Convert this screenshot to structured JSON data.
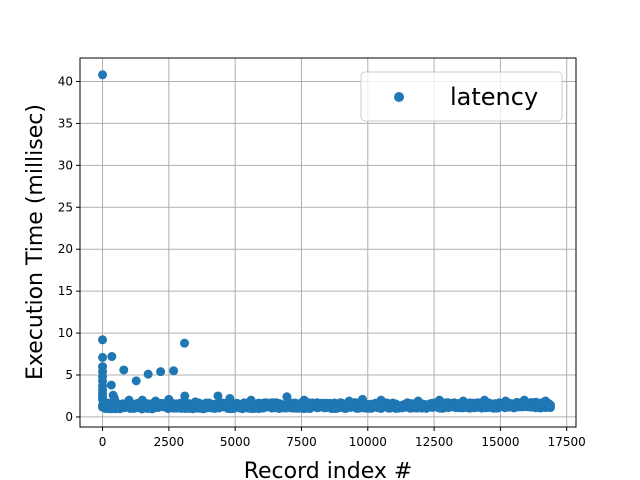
{
  "chart_data": {
    "type": "scatter",
    "title": "",
    "xlabel": "Record index #",
    "ylabel": "Execution Time (millisec)",
    "xlim": [
      -850,
      17850
    ],
    "ylim": [
      -1.2,
      42.8
    ],
    "xticks": [
      0,
      2500,
      5000,
      7500,
      10000,
      12500,
      15000,
      17500
    ],
    "xtick_labels": [
      "0",
      "2500",
      "5000",
      "7500",
      "10000",
      "12500",
      "15000",
      "17500"
    ],
    "yticks": [
      0,
      5,
      10,
      15,
      20,
      25,
      30,
      35,
      40
    ],
    "ytick_labels": [
      "0",
      "5",
      "10",
      "15",
      "20",
      "25",
      "30",
      "35",
      "40"
    ],
    "grid": true,
    "legend_position": "top-right",
    "series": [
      {
        "name": "latency",
        "color": "#1f77b4",
        "outliers": [
          [
            0,
            40.8
          ],
          [
            0,
            9.2
          ],
          [
            0,
            7.1
          ],
          [
            0,
            6.0
          ],
          [
            0,
            5.4
          ],
          [
            0,
            4.8
          ],
          [
            0,
            4.3
          ],
          [
            0,
            3.7
          ],
          [
            0,
            3.2
          ],
          [
            0,
            2.8
          ],
          [
            0,
            2.4
          ],
          [
            0,
            2.1
          ],
          [
            30,
            1.9
          ],
          [
            60,
            1.7
          ],
          [
            120,
            1.5
          ],
          [
            330,
            3.8
          ],
          [
            350,
            7.2
          ],
          [
            400,
            2.6
          ],
          [
            450,
            2.2
          ],
          [
            800,
            5.6
          ],
          [
            1270,
            4.3
          ],
          [
            1720,
            5.1
          ],
          [
            2190,
            5.4
          ],
          [
            2680,
            5.5
          ],
          [
            3090,
            8.8
          ],
          [
            3100,
            2.5
          ],
          [
            1000,
            2.0
          ],
          [
            1500,
            2.0
          ],
          [
            2000,
            1.9
          ],
          [
            2500,
            2.1
          ],
          [
            3500,
            1.8
          ],
          [
            4350,
            2.5
          ],
          [
            4800,
            2.2
          ],
          [
            5600,
            2.0
          ],
          [
            6950,
            2.4
          ],
          [
            7600,
            2.0
          ],
          [
            9300,
            1.9
          ],
          [
            9800,
            2.1
          ],
          [
            10500,
            2.0
          ],
          [
            11900,
            1.9
          ],
          [
            12700,
            2.0
          ],
          [
            13600,
            1.9
          ],
          [
            14400,
            2.0
          ],
          [
            15200,
            1.9
          ],
          [
            15900,
            2.0
          ],
          [
            16700,
            1.9
          ]
        ],
        "bulk": {
          "x_range": [
            0,
            16900
          ],
          "y_base_start": 1.3,
          "y_base_end": 1.4,
          "y_spread": 0.35
        }
      }
    ]
  }
}
